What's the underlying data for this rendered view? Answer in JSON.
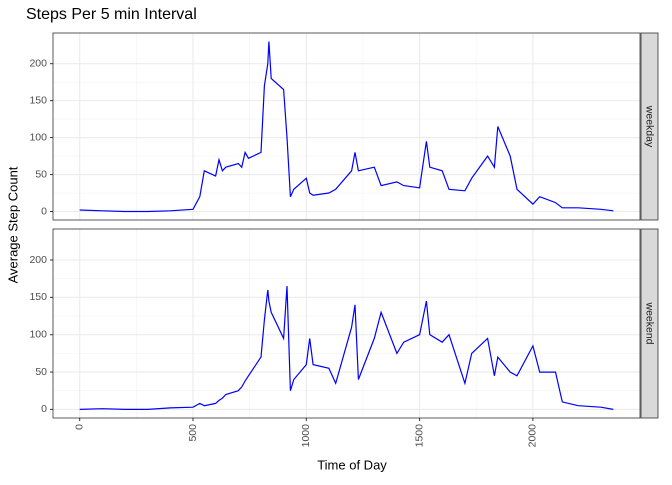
{
  "chart_data": {
    "type": "line",
    "title": "Steps Per 5 min Interval",
    "xlabel": "Time of Day",
    "ylabel": "Average Step Count",
    "xlim": [
      -117.75,
      2472.75
    ],
    "ylim": [
      -11.5,
      241.5
    ],
    "xticks": [
      0,
      500,
      1000,
      1500,
      2000
    ],
    "yticks": [
      0,
      50,
      100,
      150,
      200
    ],
    "grid": true,
    "x": [
      0,
      100,
      200,
      300,
      400,
      500,
      530,
      550,
      600,
      615,
      630,
      645,
      700,
      715,
      730,
      745,
      800,
      815,
      830,
      835,
      845,
      900,
      915,
      930,
      945,
      1000,
      1015,
      1030,
      1100,
      1130,
      1200,
      1215,
      1230,
      1300,
      1330,
      1400,
      1430,
      1500,
      1530,
      1545,
      1600,
      1630,
      1700,
      1730,
      1800,
      1830,
      1845,
      1900,
      1930,
      2000,
      2030,
      2100,
      2130,
      2200,
      2300,
      2355
    ],
    "series": [
      {
        "name": "weekday",
        "color": "#0000ff",
        "values": [
          2,
          1,
          0,
          0,
          1,
          3,
          20,
          55,
          48,
          70,
          55,
          60,
          65,
          60,
          80,
          72,
          80,
          170,
          200,
          230,
          180,
          165,
          100,
          20,
          30,
          45,
          25,
          22,
          25,
          30,
          55,
          80,
          55,
          60,
          35,
          40,
          35,
          32,
          95,
          60,
          55,
          30,
          28,
          45,
          75,
          60,
          115,
          75,
          30,
          10,
          20,
          12,
          5,
          5,
          3,
          1
        ]
      },
      {
        "name": "weekend",
        "color": "#0000ff",
        "values": [
          0,
          1,
          0,
          0,
          2,
          3,
          8,
          5,
          8,
          12,
          15,
          20,
          25,
          30,
          38,
          45,
          70,
          120,
          160,
          145,
          130,
          95,
          165,
          25,
          40,
          60,
          95,
          60,
          55,
          35,
          110,
          140,
          40,
          95,
          130,
          75,
          90,
          100,
          145,
          100,
          90,
          100,
          35,
          75,
          95,
          45,
          70,
          50,
          45,
          85,
          50,
          50,
          10,
          5,
          3,
          0
        ]
      }
    ]
  }
}
